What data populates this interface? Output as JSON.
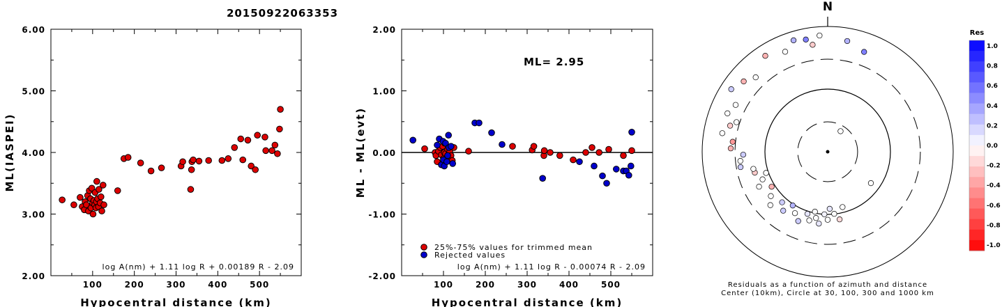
{
  "title": "20150922063353",
  "chart_data": [
    {
      "type": "scatter",
      "id": "ml-vs-distance",
      "xlabel": "Hypocentral distance (km)",
      "ylabel": "ML(IASPEI)",
      "xlim": [
        0,
        600
      ],
      "ylim": [
        2.0,
        6.0
      ],
      "x_ticks": [
        100,
        200,
        300,
        400,
        500
      ],
      "y_ticks": [
        "2.00",
        "3.00",
        "4.00",
        "5.00",
        "6.00"
      ],
      "formula": "log A(nm) + 1.11 log R + 0.00189 R - 2.09",
      "series": [
        {
          "color": "#dd0000",
          "points": [
            [
              27,
              3.23
            ],
            [
              55,
              3.15
            ],
            [
              70,
              3.27
            ],
            [
              75,
              3.12
            ],
            [
              80,
              3.07
            ],
            [
              82,
              3.2
            ],
            [
              85,
              3.15
            ],
            [
              88,
              3.3
            ],
            [
              90,
              3.05
            ],
            [
              92,
              3.38
            ],
            [
              95,
              3.25
            ],
            [
              96,
              3.1
            ],
            [
              98,
              3.42
            ],
            [
              100,
              3.18
            ],
            [
              101,
              3.0
            ],
            [
              103,
              3.22
            ],
            [
              105,
              3.15
            ],
            [
              106,
              3.35
            ],
            [
              108,
              3.1
            ],
            [
              109,
              3.2
            ],
            [
              110,
              3.53
            ],
            [
              112,
              3.25
            ],
            [
              114,
              3.12
            ],
            [
              115,
              3.4
            ],
            [
              118,
              3.18
            ],
            [
              120,
              3.28
            ],
            [
              122,
              3.05
            ],
            [
              125,
              3.47
            ],
            [
              127,
              3.15
            ],
            [
              160,
              3.38
            ],
            [
              175,
              3.9
            ],
            [
              185,
              3.92
            ],
            [
              215,
              3.83
            ],
            [
              240,
              3.7
            ],
            [
              265,
              3.75
            ],
            [
              312,
              3.78
            ],
            [
              316,
              3.85
            ],
            [
              335,
              3.4
            ],
            [
              337,
              3.72
            ],
            [
              338,
              3.85
            ],
            [
              341,
              3.88
            ],
            [
              355,
              3.86
            ],
            [
              378,
              3.87
            ],
            [
              410,
              3.87
            ],
            [
              425,
              3.9
            ],
            [
              440,
              4.08
            ],
            [
              455,
              4.22
            ],
            [
              460,
              3.88
            ],
            [
              472,
              4.2
            ],
            [
              480,
              3.78
            ],
            [
              490,
              3.72
            ],
            [
              495,
              4.28
            ],
            [
              513,
              4.25
            ],
            [
              515,
              4.03
            ],
            [
              530,
              4.03
            ],
            [
              537,
              4.12
            ],
            [
              543,
              3.98
            ],
            [
              548,
              4.38
            ],
            [
              550,
              4.7
            ]
          ]
        }
      ]
    },
    {
      "type": "scatter",
      "id": "residual-vs-distance",
      "xlabel": "Hypocentral distance (km)",
      "ylabel": "ML - ML(evt)",
      "xlim": [
        0,
        600
      ],
      "ylim": [
        -2.0,
        2.0
      ],
      "x_ticks": [
        100,
        200,
        300,
        400,
        500
      ],
      "y_ticks": [
        "-2.00",
        "-1.00",
        "0.00",
        "1.00",
        "2.00"
      ],
      "reference_line": 0,
      "annotation": "ML= 2.95",
      "formula": "log A(nm) + 1.11 log R - 0.00074 R - 2.09",
      "legend": [
        "25%-75% values for trimmed mean",
        "Rejected values"
      ],
      "series": [
        {
          "name": "25%-75% values for trimmed mean",
          "color": "#dd0000",
          "points": [
            [
              55,
              0.06
            ],
            [
              80,
              0.0
            ],
            [
              82,
              -0.05
            ],
            [
              85,
              -0.15
            ],
            [
              88,
              0.02
            ],
            [
              92,
              0.08
            ],
            [
              95,
              -0.04
            ],
            [
              98,
              0.1
            ],
            [
              100,
              -0.1
            ],
            [
              102,
              0.0
            ],
            [
              103,
              0.15
            ],
            [
              105,
              -0.02
            ],
            [
              108,
              -0.08
            ],
            [
              110,
              0.05
            ],
            [
              112,
              -0.12
            ],
            [
              115,
              0.02
            ],
            [
              118,
              -0.05
            ],
            [
              121,
              -0.13
            ],
            [
              125,
              0.08
            ],
            [
              160,
              0.02
            ],
            [
              265,
              0.1
            ],
            [
              312,
              0.04
            ],
            [
              316,
              0.1
            ],
            [
              340,
              -0.05
            ],
            [
              341,
              0.03
            ],
            [
              355,
              0.0
            ],
            [
              378,
              -0.05
            ],
            [
              410,
              -0.12
            ],
            [
              440,
              0.0
            ],
            [
              455,
              0.08
            ],
            [
              472,
              0.0
            ],
            [
              495,
              0.05
            ],
            [
              530,
              -0.05
            ],
            [
              550,
              0.03
            ]
          ]
        },
        {
          "name": "Rejected values",
          "color": "#0000cc",
          "points": [
            [
              27,
              0.2
            ],
            [
              85,
              0.12
            ],
            [
              90,
              0.22
            ],
            [
              95,
              -0.2
            ],
            [
              99,
              0.18
            ],
            [
              100,
              -0.12
            ],
            [
              102,
              -0.22
            ],
            [
              105,
              0.15
            ],
            [
              108,
              -0.15
            ],
            [
              110,
              -0.05
            ],
            [
              112,
              0.28
            ],
            [
              113,
              0.08
            ],
            [
              118,
              0.1
            ],
            [
              122,
              -0.18
            ],
            [
              175,
              0.48
            ],
            [
              185,
              0.48
            ],
            [
              215,
              0.32
            ],
            [
              240,
              0.13
            ],
            [
              337,
              -0.42
            ],
            [
              425,
              -0.15
            ],
            [
              460,
              -0.22
            ],
            [
              480,
              -0.38
            ],
            [
              490,
              -0.5
            ],
            [
              513,
              -0.27
            ],
            [
              530,
              -0.3
            ],
            [
              537,
              -0.3
            ],
            [
              543,
              -0.37
            ],
            [
              548,
              -0.22
            ],
            [
              550,
              0.33
            ]
          ]
        }
      ]
    }
  ],
  "polar": {
    "north_label": "N",
    "caption_line1": "Residuals as a function of azimuth and distance",
    "caption_line2": "Center (10km), Circle at 30, 100, 300 and 1000 km",
    "colorbar_title": "Res",
    "colorbar_ticks": [
      "1.0",
      "0.8",
      "0.6",
      "0.4",
      "0.2",
      "0.0",
      "-0.2",
      "-0.4",
      "-0.6",
      "-0.8",
      "-1.0"
    ],
    "stations": [
      [
        -3,
        32,
        0.0
      ],
      [
        -3,
        126,
        0.0
      ],
      [
        -3,
        165,
        0.0
      ],
      [
        -3,
        170,
        -0.15
      ],
      [
        -3,
        174,
        0.0
      ],
      [
        -3,
        178,
        0.1
      ],
      [
        -3,
        180,
        0.0
      ],
      [
        -3,
        183,
        0.05
      ],
      [
        -3,
        187,
        0.1
      ],
      [
        -3,
        190,
        0.0
      ],
      [
        -3,
        192,
        0.0
      ],
      [
        -3,
        195,
        0.0
      ],
      [
        -3,
        198,
        0.1
      ],
      [
        -3,
        203,
        0.2
      ],
      [
        -3,
        208,
        0.0
      ],
      [
        -3,
        213,
        0.3
      ],
      [
        -3,
        217,
        0.2
      ],
      [
        -3,
        222,
        0.2
      ],
      [
        -3,
        227,
        0.0
      ],
      [
        -3,
        232,
        0.0
      ],
      [
        -3,
        238,
        -0.3
      ],
      [
        -3,
        243,
        0.0
      ],
      [
        -3,
        247,
        0.0
      ],
      [
        -3,
        251,
        0.0
      ],
      [
        -3,
        254,
        -0.2
      ],
      [
        -3,
        257,
        0.0
      ],
      [
        -3,
        260,
        0.2
      ],
      [
        -3,
        264,
        0.0
      ],
      [
        -3,
        268,
        0.2
      ],
      [
        -3,
        272,
        -0.3
      ],
      [
        -3,
        276,
        -0.4
      ],
      [
        -3,
        280,
        0.0
      ],
      [
        -3,
        285,
        -0.2
      ],
      [
        -3,
        288,
        0.0
      ],
      [
        -3,
        291,
        0.0
      ],
      [
        -3,
        297,
        0.0
      ],
      [
        -3,
        303,
        0.2
      ],
      [
        -3,
        310,
        -0.3
      ],
      [
        -3,
        316,
        0.0
      ],
      [
        -3,
        327,
        -0.3
      ],
      [
        -3,
        337,
        0.0
      ],
      [
        -3,
        343,
        0.3
      ],
      [
        -3,
        349,
        0.5
      ],
      [
        -3,
        352,
        -0.2
      ],
      [
        -3,
        356,
        0.0
      ],
      [
        -3,
        10,
        0.3
      ],
      [
        -3,
        20,
        0.5
      ]
    ]
  }
}
